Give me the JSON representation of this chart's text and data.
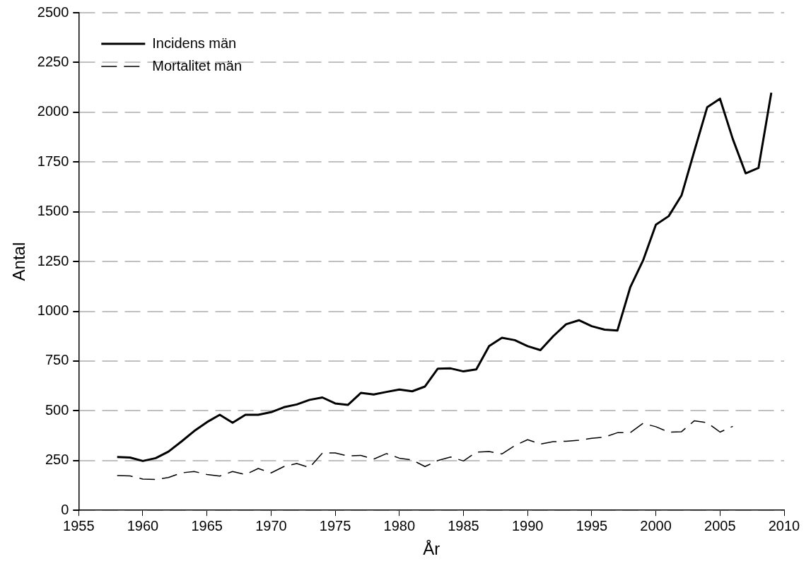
{
  "chart_data": {
    "type": "line",
    "xlabel": "År",
    "ylabel": "Antal",
    "x": [
      1958,
      1959,
      1960,
      1961,
      1962,
      1963,
      1964,
      1965,
      1966,
      1967,
      1968,
      1969,
      1970,
      1971,
      1972,
      1973,
      1974,
      1975,
      1976,
      1977,
      1978,
      1979,
      1980,
      1981,
      1982,
      1983,
      1984,
      1985,
      1986,
      1987,
      1988,
      1989,
      1990,
      1991,
      1992,
      1993,
      1994,
      1995,
      1996,
      1997,
      1998,
      1999,
      2000,
      2001,
      2002,
      2003,
      2004,
      2005,
      2006,
      2007,
      2008,
      2009
    ],
    "series": [
      {
        "name": "Incidens män",
        "color": "#000000",
        "line_style": "solid",
        "values": [
          268,
          265,
          248,
          262,
          295,
          345,
          398,
          443,
          480,
          440,
          480,
          480,
          493,
          518,
          532,
          555,
          567,
          537,
          530,
          590,
          582,
          595,
          607,
          598,
          622,
          712,
          713,
          698,
          708,
          825,
          867,
          855,
          825,
          805,
          875,
          935,
          955,
          925,
          908,
          903,
          1120,
          1255,
          1435,
          1478,
          1582,
          1805,
          2025,
          2068,
          1865,
          1693,
          1720,
          2098
        ]
      },
      {
        "name": "Mortalitet män",
        "color": "#000000",
        "line_style": "dashed",
        "values": [
          175,
          173,
          157,
          155,
          165,
          188,
          195,
          180,
          172,
          195,
          180,
          210,
          188,
          220,
          235,
          215,
          288,
          288,
          273,
          276,
          257,
          285,
          262,
          253,
          220,
          250,
          268,
          248,
          292,
          295,
          283,
          325,
          355,
          333,
          345,
          347,
          352,
          362,
          368,
          390,
          390,
          437,
          420,
          393,
          395,
          450,
          440,
          393,
          422,
          null,
          null,
          null
        ]
      }
    ],
    "xlim": [
      1955,
      2010
    ],
    "xticks": [
      1955,
      1960,
      1965,
      1970,
      1975,
      1980,
      1985,
      1990,
      1995,
      2000,
      2005,
      2010
    ],
    "ylim": [
      0,
      2500
    ],
    "yticks": [
      0,
      250,
      500,
      750,
      1000,
      1250,
      1500,
      1750,
      2000,
      2250,
      2500
    ],
    "grid": "y",
    "legend": "top left",
    "marker": "none"
  }
}
